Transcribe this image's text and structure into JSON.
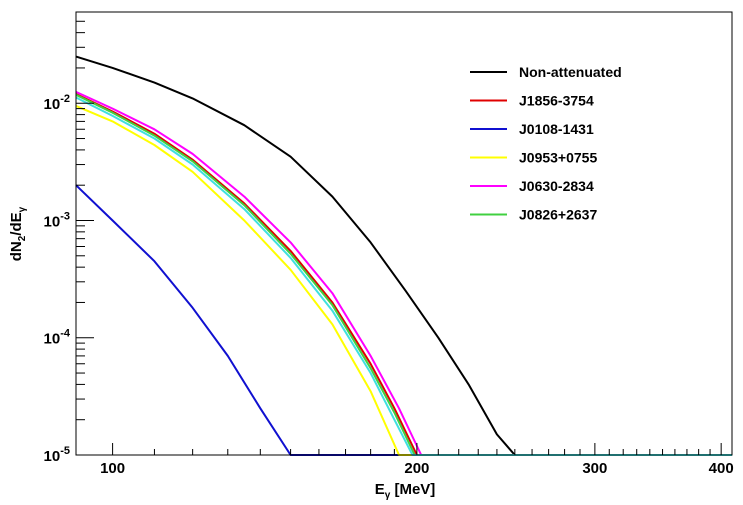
{
  "chart_data": {
    "type": "line",
    "xlabel": "E",
    "xlabel_sub": "γ",
    "xlabel_unit": " [MeV]",
    "ylabel_parts": {
      "a": "dN",
      "sub1": "2",
      "b": "/dE",
      "sub2": "γ"
    },
    "xscale": "log",
    "yscale": "log",
    "xlim": [
      92,
      410
    ],
    "ylim": [
      1e-05,
      0.06
    ],
    "grid": false,
    "legend_position": "top-right",
    "x_ticks": [
      {
        "value": 100,
        "label": "100"
      },
      {
        "value": 200,
        "label": "200"
      },
      {
        "value": 300,
        "label": "300"
      },
      {
        "value": 400,
        "label": "400"
      }
    ],
    "y_ticks": [
      {
        "value": 1e-05,
        "base": "10",
        "exp": "-5"
      },
      {
        "value": 0.0001,
        "base": "10",
        "exp": "-4"
      },
      {
        "value": 0.001,
        "base": "10",
        "exp": "-3"
      },
      {
        "value": 0.01,
        "base": "10",
        "exp": "-2"
      }
    ],
    "series": [
      {
        "name": "Non-attenuated",
        "color": "#000000",
        "x": [
          92,
          100,
          110,
          120,
          135,
          150,
          165,
          180,
          195,
          210,
          225,
          240,
          250,
          410
        ],
        "y": [
          0.025,
          0.02,
          0.015,
          0.011,
          0.0065,
          0.0035,
          0.0016,
          0.00065,
          0.00025,
          0.0001,
          4e-05,
          1.5e-05,
          1e-05,
          1e-05
        ]
      },
      {
        "name": "J1856-3754",
        "color": "#e00000",
        "x": [
          92,
          100,
          110,
          120,
          135,
          150,
          165,
          180,
          190,
          200,
          410
        ],
        "y": [
          0.012,
          0.0085,
          0.0055,
          0.0033,
          0.0014,
          0.00055,
          0.0002,
          6e-05,
          2.5e-05,
          1e-05,
          1e-05
        ]
      },
      {
        "name": "J0108-1431",
        "color": "#1010d0",
        "x": [
          92,
          100,
          110,
          120,
          130,
          140,
          150,
          410
        ],
        "y": [
          0.002,
          0.001,
          0.00045,
          0.00018,
          7e-05,
          2.5e-05,
          1e-05,
          1e-05
        ]
      },
      {
        "name": "J0953+0755",
        "color": "#ffff00",
        "x": [
          92,
          100,
          110,
          120,
          135,
          150,
          165,
          180,
          192,
          410
        ],
        "y": [
          0.0095,
          0.007,
          0.0044,
          0.0026,
          0.001,
          0.00038,
          0.00013,
          3.5e-05,
          1e-05,
          1e-05
        ]
      },
      {
        "name": "J0630-2834",
        "color": "#ff00ff",
        "x": [
          92,
          100,
          110,
          120,
          135,
          150,
          165,
          180,
          192,
          202,
          410
        ],
        "y": [
          0.0125,
          0.009,
          0.006,
          0.0037,
          0.0016,
          0.00065,
          0.00024,
          7e-05,
          2.5e-05,
          1e-05,
          1e-05
        ]
      },
      {
        "name": "J0826+2637",
        "color": "#40d040",
        "x": [
          92,
          100,
          110,
          120,
          135,
          150,
          165,
          180,
          190,
          199,
          410
        ],
        "y": [
          0.0118,
          0.0083,
          0.0053,
          0.0032,
          0.00135,
          0.00052,
          0.00019,
          5.5e-05,
          2.3e-05,
          1e-05,
          1e-05
        ]
      },
      {
        "name": "",
        "color": "#40e0e0",
        "x": [
          92,
          100,
          110,
          120,
          135,
          150,
          165,
          180,
          190,
          198,
          410
        ],
        "y": [
          0.0112,
          0.0078,
          0.005,
          0.003,
          0.00125,
          0.00048,
          0.00017,
          5e-05,
          2e-05,
          1e-05,
          1e-05
        ]
      }
    ]
  }
}
